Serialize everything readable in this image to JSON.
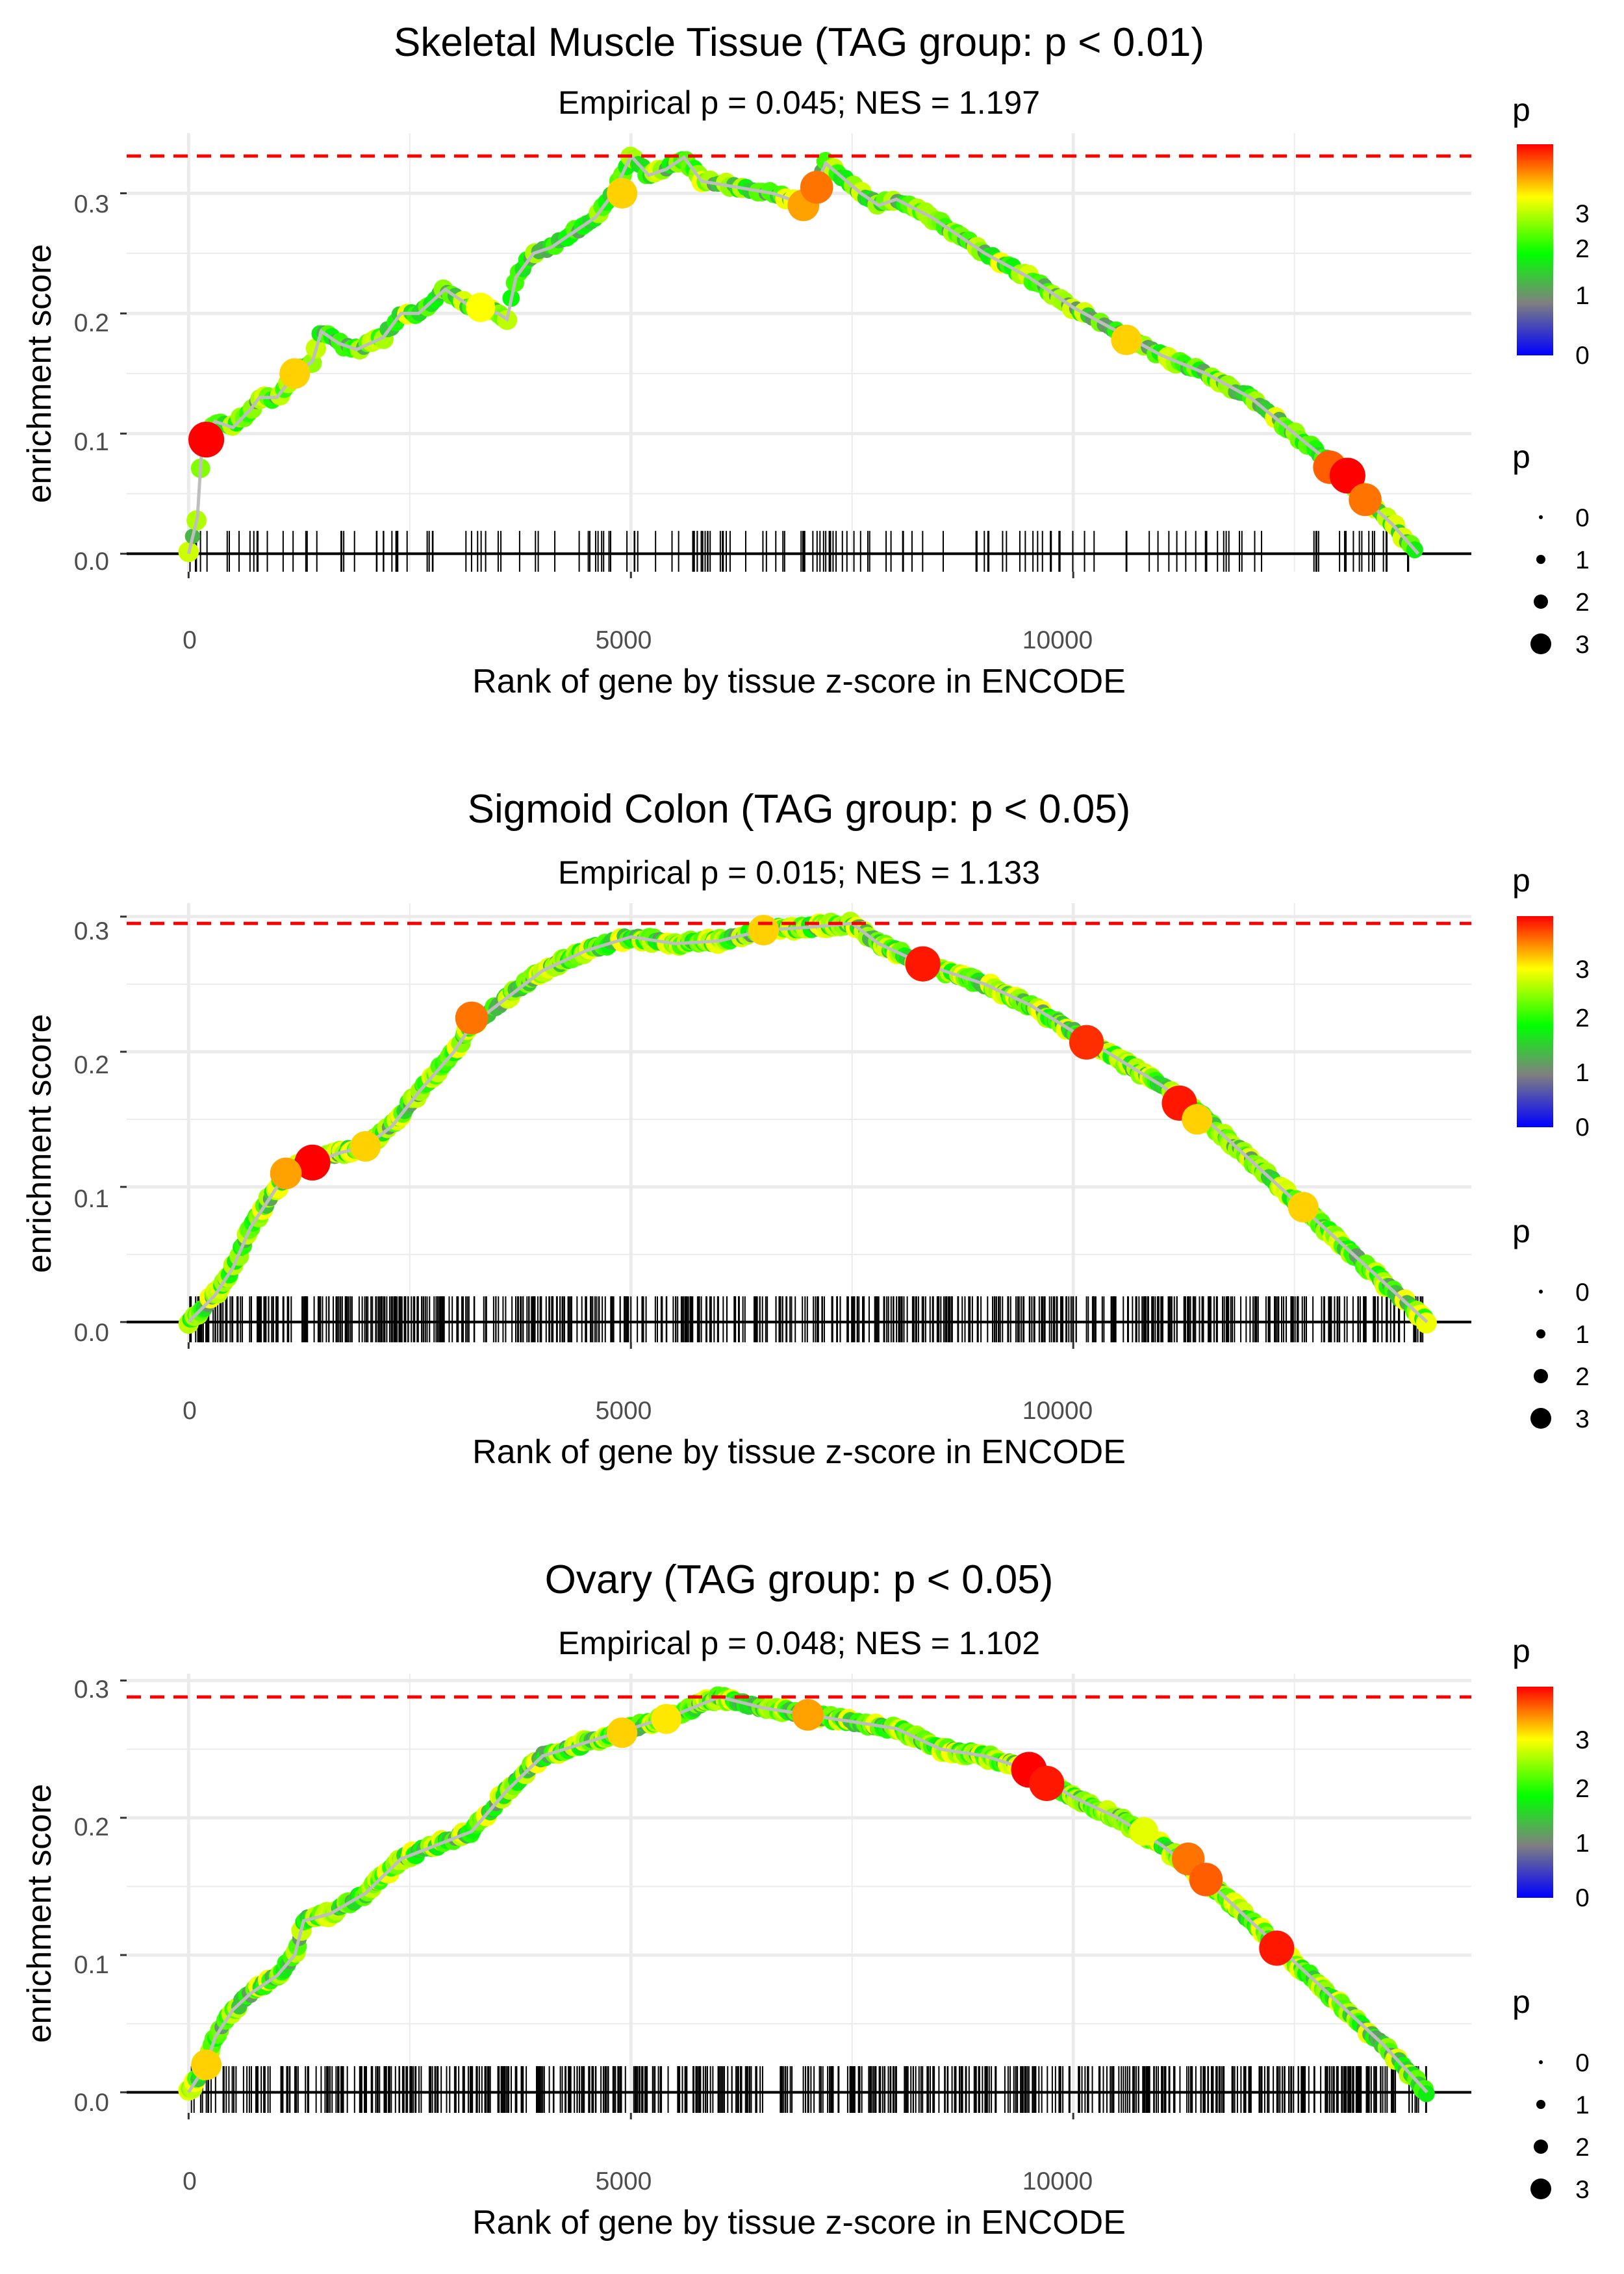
{
  "colors": {
    "max_line": "#ff0000",
    "curve": "#bebebe",
    "rug": "#000000",
    "grid": "#ebebeb",
    "baseline": "#000000",
    "gradient": [
      "#0000ff",
      "#808080",
      "#00ff00",
      "#ffff00",
      "#ff0000"
    ]
  },
  "chart_data": [
    {
      "type": "scatter",
      "title": "Skeletal Muscle Tissue (TAG group: p < 0.01)",
      "subtitle": "Empirical p = 0.045; NES = 1.197",
      "xlabel": "Rank of gene by tissue z-score in ENCODE",
      "ylabel": "enrichment score",
      "xlim": [
        -700,
        14500
      ],
      "ylim": [
        -0.015,
        0.35
      ],
      "x_ticks": [
        0,
        5000,
        10000
      ],
      "x_tick_labels": [
        "0",
        "5000",
        "10000"
      ],
      "y_ticks": [
        0.0,
        0.1,
        0.2,
        0.3
      ],
      "y_tick_labels": [
        "0.0",
        "0.1",
        "0.2",
        "0.3"
      ],
      "max_es": 0.331,
      "n_genes": 13900,
      "curve": [
        [
          0,
          0
        ],
        [
          100,
          0.03
        ],
        [
          150,
          0.09
        ],
        [
          200,
          0.1
        ],
        [
          300,
          0.11
        ],
        [
          500,
          0.105
        ],
        [
          700,
          0.12
        ],
        [
          800,
          0.13
        ],
        [
          1000,
          0.13
        ],
        [
          1200,
          0.15
        ],
        [
          1400,
          0.16
        ],
        [
          1500,
          0.185
        ],
        [
          1700,
          0.175
        ],
        [
          1900,
          0.17
        ],
        [
          2200,
          0.18
        ],
        [
          2400,
          0.2
        ],
        [
          2600,
          0.2
        ],
        [
          2900,
          0.22
        ],
        [
          3200,
          0.205
        ],
        [
          3500,
          0.2
        ],
        [
          3600,
          0.195
        ],
        [
          3700,
          0.23
        ],
        [
          3900,
          0.25
        ],
        [
          4100,
          0.255
        ],
        [
          4300,
          0.265
        ],
        [
          4600,
          0.28
        ],
        [
          4800,
          0.3
        ],
        [
          5000,
          0.331
        ],
        [
          5200,
          0.315
        ],
        [
          5400,
          0.32
        ],
        [
          5600,
          0.33
        ],
        [
          5800,
          0.31
        ],
        [
          6200,
          0.305
        ],
        [
          6600,
          0.3
        ],
        [
          7000,
          0.29
        ],
        [
          7200,
          0.325
        ],
        [
          7600,
          0.3
        ],
        [
          7800,
          0.29
        ],
        [
          8000,
          0.295
        ],
        [
          8400,
          0.28
        ],
        [
          9000,
          0.25
        ],
        [
          9500,
          0.23
        ],
        [
          10000,
          0.205
        ],
        [
          10500,
          0.185
        ],
        [
          11000,
          0.165
        ],
        [
          11500,
          0.15
        ],
        [
          12000,
          0.13
        ],
        [
          12500,
          0.1
        ],
        [
          13000,
          0.07
        ],
        [
          13300,
          0.045
        ],
        [
          13600,
          0.025
        ],
        [
          13900,
          0
        ]
      ],
      "highlights": [
        [
          200,
          0.095,
          3.9
        ],
        [
          4900,
          0.3,
          3.0
        ],
        [
          6950,
          0.29,
          3.2
        ],
        [
          7100,
          0.305,
          3.4
        ],
        [
          10600,
          0.178,
          3.0
        ],
        [
          12900,
          0.072,
          3.5
        ],
        [
          13100,
          0.065,
          3.9
        ],
        [
          13300,
          0.045,
          3.4
        ],
        [
          3300,
          0.205,
          2.8
        ],
        [
          1200,
          0.15,
          3.0
        ]
      ],
      "rug_count": 170,
      "color_legend": {
        "title": "p",
        "labels": [
          "3",
          "2",
          "1",
          "0"
        ]
      },
      "size_legend": {
        "title": "p",
        "labels": [
          "0",
          "1",
          "2",
          "3"
        ]
      }
    },
    {
      "type": "scatter",
      "title": "Sigmoid Colon (TAG group: p < 0.05)",
      "subtitle": "Empirical p = 0.015; NES = 1.133",
      "xlabel": "Rank of gene by tissue z-score in ENCODE",
      "ylabel": "enrichment score",
      "xlim": [
        -700,
        14500
      ],
      "ylim": [
        -0.015,
        0.31
      ],
      "x_ticks": [
        0,
        5000,
        10000
      ],
      "x_tick_labels": [
        "0",
        "5000",
        "10000"
      ],
      "y_ticks": [
        0.0,
        0.1,
        0.2,
        0.3
      ],
      "y_tick_labels": [
        "0.0",
        "0.1",
        "0.2",
        "0.3"
      ],
      "max_es": 0.295,
      "n_genes": 14000,
      "curve": [
        [
          0,
          0
        ],
        [
          300,
          0.02
        ],
        [
          500,
          0.04
        ],
        [
          700,
          0.07
        ],
        [
          1000,
          0.1
        ],
        [
          1200,
          0.115
        ],
        [
          1400,
          0.118
        ],
        [
          1700,
          0.125
        ],
        [
          2000,
          0.13
        ],
        [
          2300,
          0.145
        ],
        [
          2600,
          0.17
        ],
        [
          3000,
          0.2
        ],
        [
          3200,
          0.22
        ],
        [
          3500,
          0.235
        ],
        [
          4000,
          0.26
        ],
        [
          4500,
          0.275
        ],
        [
          5000,
          0.285
        ],
        [
          5500,
          0.28
        ],
        [
          6000,
          0.282
        ],
        [
          6500,
          0.29
        ],
        [
          7000,
          0.292
        ],
        [
          7500,
          0.295
        ],
        [
          7800,
          0.28
        ],
        [
          8300,
          0.265
        ],
        [
          9000,
          0.25
        ],
        [
          9500,
          0.235
        ],
        [
          10000,
          0.215
        ],
        [
          10500,
          0.195
        ],
        [
          11000,
          0.175
        ],
        [
          11500,
          0.15
        ],
        [
          12000,
          0.12
        ],
        [
          12500,
          0.09
        ],
        [
          13000,
          0.06
        ],
        [
          13500,
          0.03
        ],
        [
          14000,
          0
        ]
      ],
      "highlights": [
        [
          1400,
          0.118,
          3.9
        ],
        [
          1100,
          0.11,
          3.2
        ],
        [
          2000,
          0.13,
          3.0
        ],
        [
          3200,
          0.225,
          3.4
        ],
        [
          8300,
          0.265,
          3.8
        ],
        [
          10150,
          0.207,
          3.7
        ],
        [
          11200,
          0.162,
          3.8
        ],
        [
          11400,
          0.15,
          3.0
        ],
        [
          6500,
          0.29,
          3.0
        ],
        [
          12600,
          0.085,
          3.0
        ]
      ],
      "rug_count": 650,
      "color_legend": {
        "title": "p",
        "labels": [
          "3",
          "2",
          "1",
          "0"
        ]
      },
      "size_legend": {
        "title": "p",
        "labels": [
          "0",
          "1",
          "2",
          "3"
        ]
      }
    },
    {
      "type": "scatter",
      "title": "Ovary (TAG group: p < 0.05)",
      "subtitle": "Empirical p = 0.048; NES = 1.102",
      "xlabel": "Rank of gene by tissue z-score in ENCODE",
      "ylabel": "enrichment score",
      "xlim": [
        -700,
        14500
      ],
      "ylim": [
        -0.015,
        0.305
      ],
      "x_ticks": [
        0,
        5000,
        10000
      ],
      "x_tick_labels": [
        "0",
        "5000",
        "10000"
      ],
      "y_ticks": [
        0.0,
        0.1,
        0.2,
        0.3
      ],
      "y_tick_labels": [
        "0.0",
        "0.1",
        "0.2",
        "0.3"
      ],
      "max_es": 0.288,
      "n_genes": 14000,
      "curve": [
        [
          0,
          0
        ],
        [
          200,
          0.02
        ],
        [
          300,
          0.04
        ],
        [
          500,
          0.06
        ],
        [
          700,
          0.072
        ],
        [
          1000,
          0.085
        ],
        [
          1200,
          0.1
        ],
        [
          1300,
          0.125
        ],
        [
          1600,
          0.13
        ],
        [
          2000,
          0.145
        ],
        [
          2400,
          0.17
        ],
        [
          2800,
          0.18
        ],
        [
          3200,
          0.19
        ],
        [
          3600,
          0.22
        ],
        [
          4000,
          0.245
        ],
        [
          4500,
          0.255
        ],
        [
          5000,
          0.265
        ],
        [
          5500,
          0.275
        ],
        [
          6000,
          0.288
        ],
        [
          6500,
          0.28
        ],
        [
          7000,
          0.275
        ],
        [
          7500,
          0.27
        ],
        [
          8000,
          0.265
        ],
        [
          8500,
          0.25
        ],
        [
          9000,
          0.245
        ],
        [
          9500,
          0.235
        ],
        [
          10000,
          0.215
        ],
        [
          10500,
          0.2
        ],
        [
          11000,
          0.18
        ],
        [
          11500,
          0.155
        ],
        [
          12000,
          0.125
        ],
        [
          12500,
          0.095
        ],
        [
          13000,
          0.065
        ],
        [
          13500,
          0.035
        ],
        [
          14000,
          0
        ]
      ],
      "highlights": [
        [
          9500,
          0.235,
          3.9
        ],
        [
          9700,
          0.225,
          3.8
        ],
        [
          11300,
          0.17,
          3.4
        ],
        [
          11500,
          0.155,
          3.5
        ],
        [
          12300,
          0.105,
          3.8
        ],
        [
          7000,
          0.275,
          3.2
        ],
        [
          4900,
          0.262,
          3.0
        ],
        [
          5400,
          0.272,
          2.9
        ],
        [
          200,
          0.02,
          3.0
        ],
        [
          10800,
          0.19,
          2.7
        ]
      ],
      "rug_count": 650,
      "color_legend": {
        "title": "p",
        "labels": [
          "3",
          "2",
          "1",
          "0"
        ]
      },
      "size_legend": {
        "title": "p",
        "labels": [
          "0",
          "1",
          "2",
          "3"
        ]
      }
    }
  ]
}
